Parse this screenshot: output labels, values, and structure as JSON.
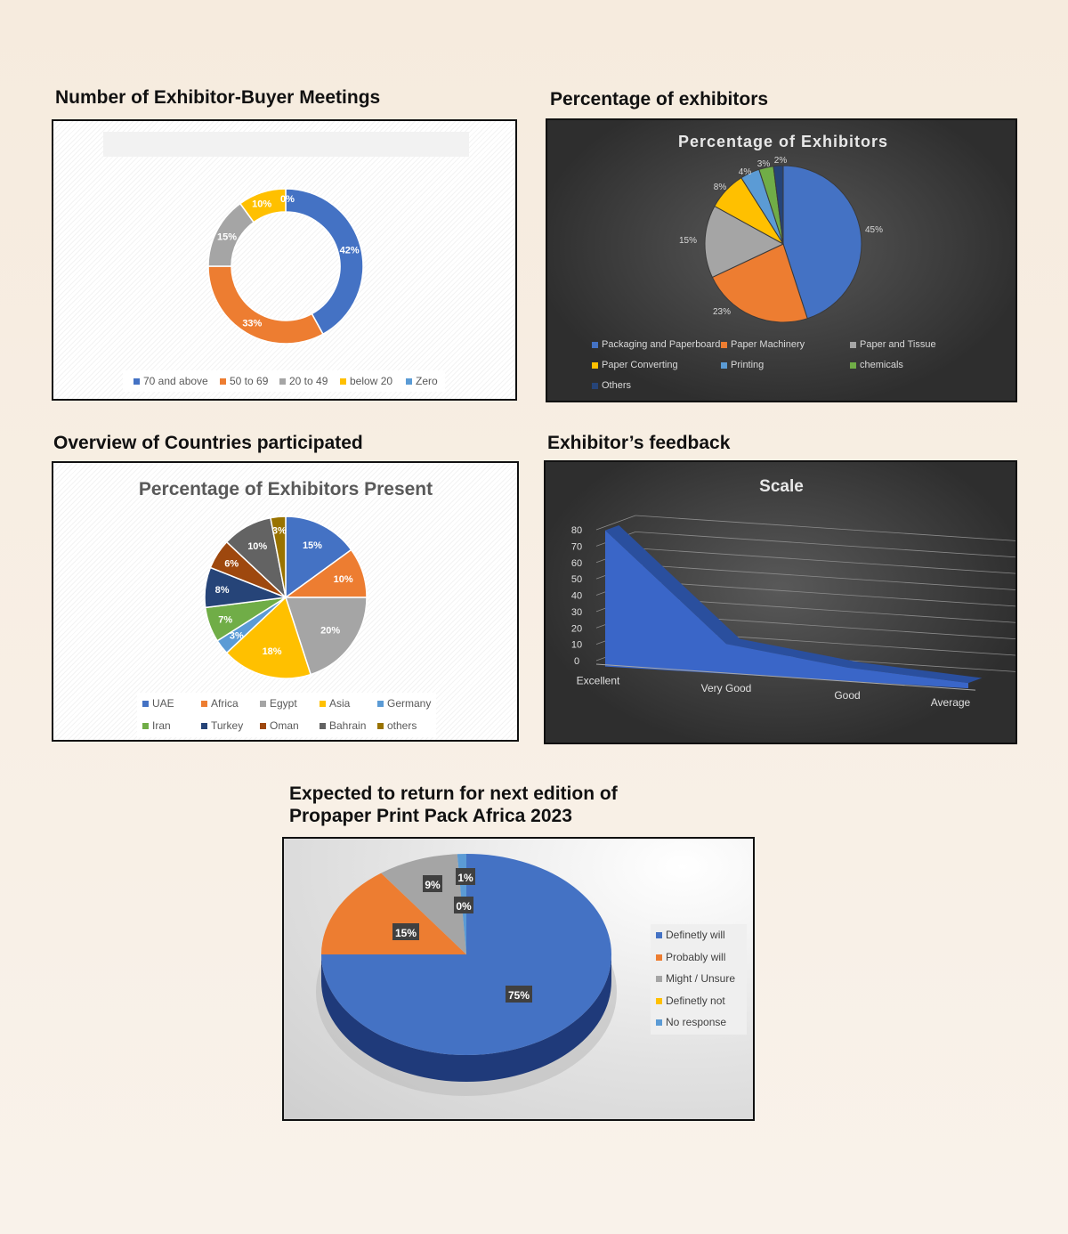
{
  "headings": {
    "meetings": "Number of Exhibitor-Buyer Meetings",
    "exhibitors": "Percentage of exhibitors",
    "countries": "Overview of Countries participated",
    "feedback": "Exhibitor’s feedback",
    "return_line1": "Expected to return for next edition of",
    "return_line2": "Propaper Print Pack Africa 2023"
  },
  "chart_data": [
    {
      "id": "meetings",
      "type": "pie",
      "variant": "donut",
      "title": "",
      "categories": [
        "70 and above",
        "50 to 69",
        "20 to 49",
        "below 20",
        "Zero"
      ],
      "values": [
        42,
        33,
        15,
        10,
        0
      ],
      "labels": [
        "42%",
        "33%",
        "15%",
        "10%",
        "0%"
      ],
      "colors": [
        "#4472C4",
        "#ED7D31",
        "#A5A5A5",
        "#FFC000",
        "#5B9BD5"
      ],
      "legend_position": "bottom"
    },
    {
      "id": "exhibitors",
      "type": "pie",
      "title": "Percentage of Exhibitors",
      "categories": [
        "Packaging and Paperboard",
        "Paper Machinery",
        "Paper and Tissue",
        "Paper Converting",
        "Printing",
        "chemicals",
        "Others"
      ],
      "values": [
        45,
        23,
        15,
        8,
        4,
        3,
        2
      ],
      "labels": [
        "45%",
        "23%",
        "15%",
        "8%",
        "4%",
        "3%",
        "2%"
      ],
      "colors": [
        "#4472C4",
        "#ED7D31",
        "#A5A5A5",
        "#FFC000",
        "#5B9BD5",
        "#70AD47",
        "#264478"
      ],
      "legend_position": "bottom"
    },
    {
      "id": "countries",
      "type": "pie",
      "title": "Percentage of Exhibitors Present",
      "categories": [
        "UAE",
        "Africa",
        "Egypt",
        "Asia",
        "Germany",
        "Iran",
        "Turkey",
        "Oman",
        "Bahrain",
        "others"
      ],
      "values": [
        15,
        10,
        20,
        18,
        3,
        7,
        8,
        6,
        10,
        3
      ],
      "labels": [
        "15%",
        "10%",
        "20%",
        "18%",
        "3%",
        "7%",
        "8%",
        "6%",
        "10%",
        "3%"
      ],
      "colors": [
        "#4472C4",
        "#ED7D31",
        "#A5A5A5",
        "#FFC000",
        "#5B9BD5",
        "#70AD47",
        "#264478",
        "#9E480E",
        "#636363",
        "#997300"
      ],
      "legend_position": "bottom"
    },
    {
      "id": "feedback",
      "type": "area",
      "title": "Scale",
      "categories": [
        "Excellent",
        "Very Good",
        "Good",
        "Average"
      ],
      "values": [
        80,
        15,
        5,
        0
      ],
      "y_ticks": [
        "0",
        "10",
        "20",
        "30",
        "40",
        "50",
        "60",
        "70",
        "80"
      ],
      "ylim": [
        0,
        80
      ],
      "grid": true,
      "color": "#3A66C8"
    },
    {
      "id": "return",
      "type": "pie",
      "title": "",
      "categories": [
        "Definetly will",
        "Probably will",
        "Might / Unsure",
        "Definetly not",
        "No response"
      ],
      "values": [
        75,
        15,
        9,
        0,
        1
      ],
      "labels": [
        "75%",
        "15%",
        "9%",
        "0%",
        "1%"
      ],
      "colors": [
        "#4472C4",
        "#ED7D31",
        "#A5A5A5",
        "#FFC000",
        "#5B9BD5"
      ],
      "legend_position": "right"
    }
  ]
}
